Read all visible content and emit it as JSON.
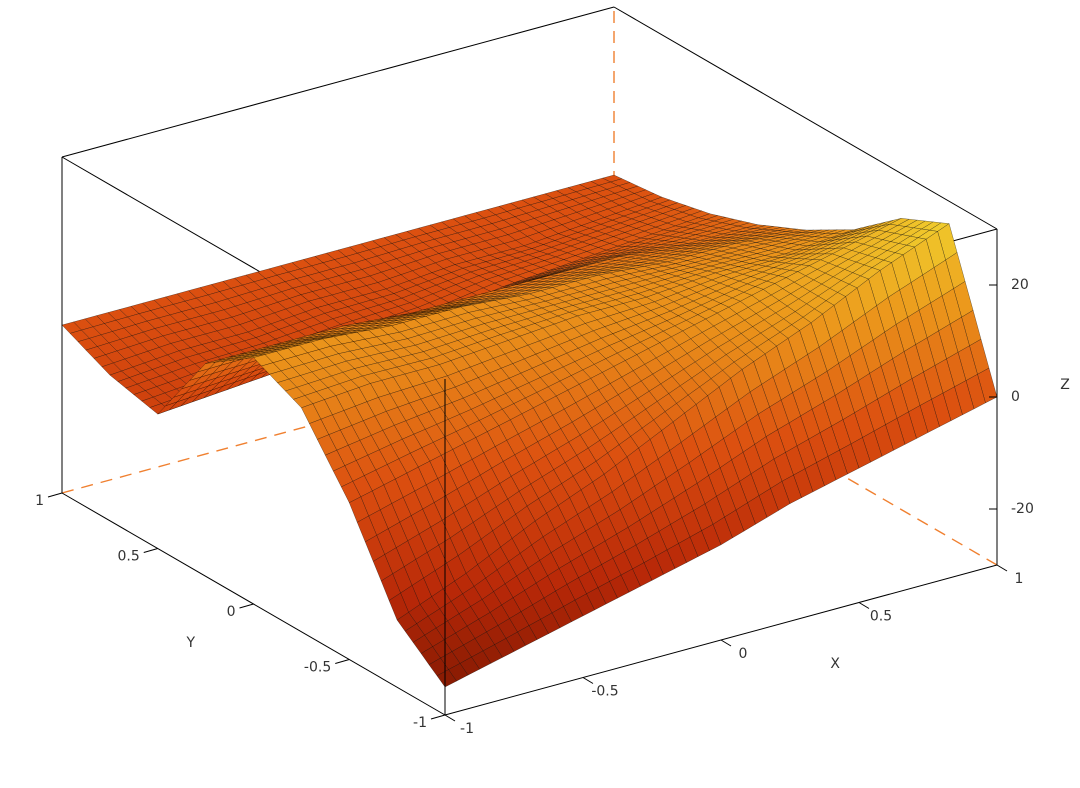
{
  "chart_data": {
    "type": "surface",
    "x_label": "X",
    "y_label": "Y",
    "z_label": "Z",
    "x": [
      -1,
      -0.75,
      -0.5,
      -0.25,
      0,
      0.25,
      0.5,
      0.75,
      1
    ],
    "y": [
      -1,
      -0.75,
      -0.5,
      -0.25,
      0,
      0.25,
      0.5,
      0.75,
      1
    ],
    "z": [
      [
        -25,
        -18,
        -2,
        10,
        14,
        8,
        -6,
        -4,
        0
      ],
      [
        -22,
        -13,
        1,
        11,
        14,
        8,
        -5,
        -3,
        0
      ],
      [
        -19,
        -7,
        4,
        11,
        13,
        8,
        -4,
        -3,
        0
      ],
      [
        -16,
        -2,
        7,
        12,
        13,
        7,
        -3,
        -2,
        0
      ],
      [
        -13,
        4,
        10,
        13,
        12,
        7,
        -2,
        -2,
        0
      ],
      [
        -9,
        10,
        13,
        13,
        12,
        7,
        0,
        -1,
        0
      ],
      [
        -6,
        15,
        16,
        14,
        11,
        7,
        1,
        -1,
        0
      ],
      [
        -3,
        21,
        19,
        14,
        11,
        6,
        2,
        0,
        0
      ],
      [
        0,
        26,
        22,
        15,
        10,
        6,
        3,
        1,
        0
      ]
    ],
    "xlim": [
      -1,
      1
    ],
    "ylim": [
      -1,
      1
    ],
    "zlim": [
      -30,
      30
    ],
    "xticks": [
      -1,
      -0.5,
      0,
      0.5,
      1
    ],
    "yticks": [
      -1,
      -0.5,
      0,
      0.5,
      1
    ],
    "zticks": [
      -20,
      0,
      20
    ],
    "colormap": [
      "#6e1400",
      "#b82808",
      "#dc5010",
      "#ec9a1c",
      "#f2e234"
    ],
    "mesh_color": "#000000"
  }
}
